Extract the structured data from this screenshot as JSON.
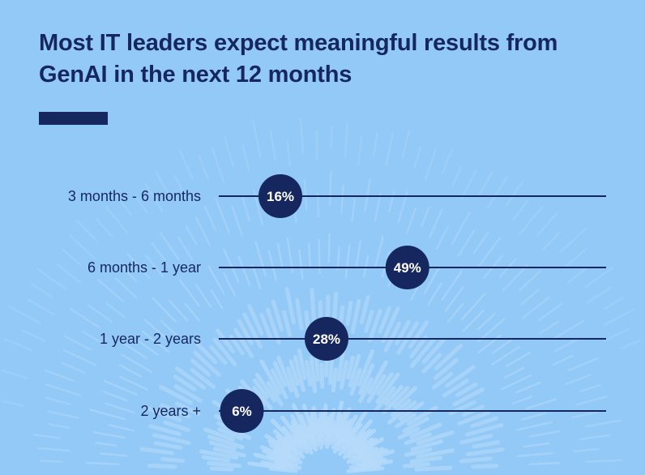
{
  "chart_data": {
    "type": "dot",
    "title": "Most IT leaders expect meaningful results from GenAI in the next 12 months",
    "categories": [
      "3 months - 6 months",
      "6 months - 1 year",
      "1 year - 2 years",
      "2 years +"
    ],
    "values": [
      16,
      49,
      28,
      6
    ],
    "labels": [
      "16%",
      "49%",
      "28%",
      "6%"
    ],
    "xlim": [
      0,
      100
    ],
    "grid": false,
    "colors": {
      "background": "#92c9f7",
      "navy": "#16275f",
      "rays": "#b9dcfa",
      "dot_text": "#ffffff"
    }
  }
}
